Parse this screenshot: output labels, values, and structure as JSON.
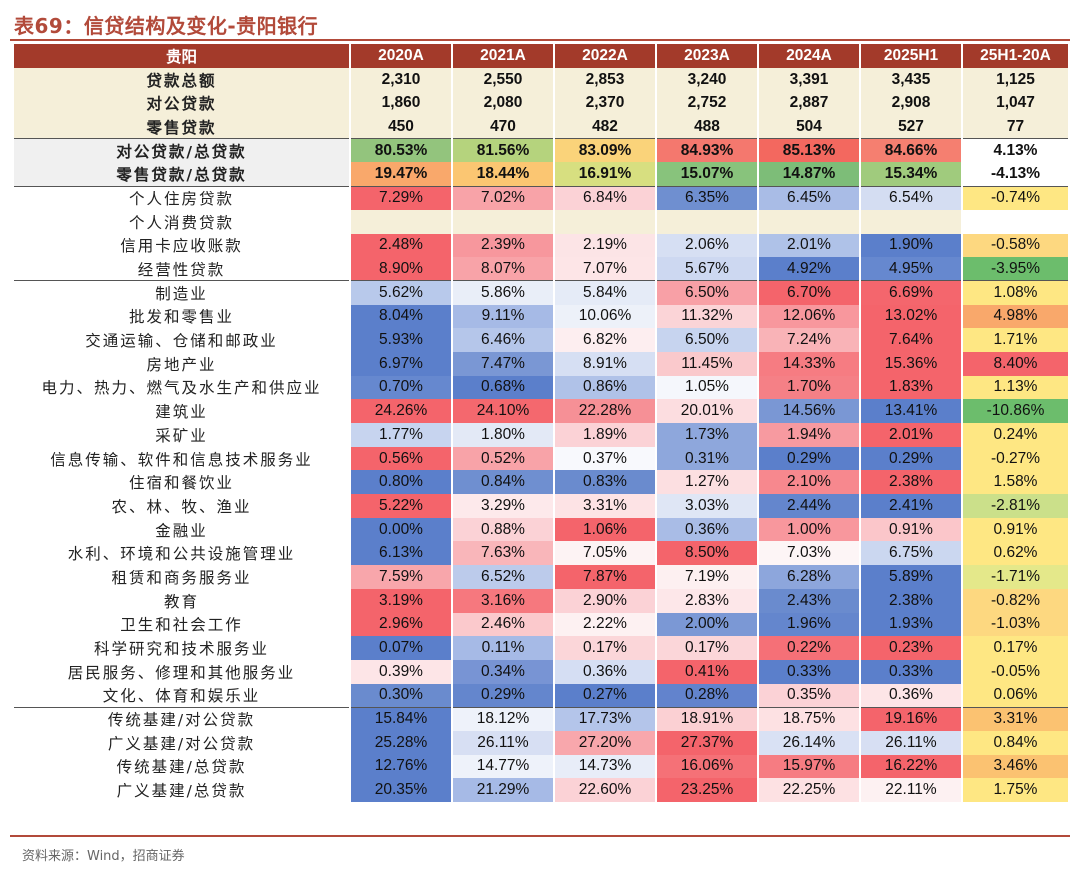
{
  "title": "表69：信贷结构及变化-贵阳银行",
  "header": [
    "贵阳",
    "2020A",
    "2021A",
    "2022A",
    "2023A",
    "2024A",
    "2025H1",
    "25H1-20A"
  ],
  "rows": [
    {
      "label": "贷款总额",
      "values": [
        "2,310",
        "2,550",
        "2,853",
        "3,240",
        "3,391",
        "3,435",
        "1,125"
      ],
      "colors": [
        "",
        "",
        "",
        "",
        "",
        "",
        ""
      ],
      "style": "beige bold"
    },
    {
      "label": "对公贷款",
      "values": [
        "1,860",
        "2,080",
        "2,370",
        "2,752",
        "2,887",
        "2,908",
        "1,047"
      ],
      "colors": [
        "",
        "",
        "",
        "",
        "",
        "",
        ""
      ],
      "style": "beige bold"
    },
    {
      "label": "零售贷款",
      "values": [
        "450",
        "470",
        "482",
        "488",
        "504",
        "527",
        "77"
      ],
      "colors": [
        "",
        "",
        "",
        "",
        "",
        "",
        ""
      ],
      "style": "beige bold"
    },
    {
      "label": "对公贷款/总贷款",
      "values": [
        "80.53%",
        "81.56%",
        "83.09%",
        "84.93%",
        "85.13%",
        "84.66%",
        "4.13%"
      ],
      "colors": [
        "#93c47d",
        "#b5d37d",
        "#fad37a",
        "#f4786e",
        "#f3685f",
        "#f57f70",
        "#ffffff"
      ],
      "style": "gray bold sep"
    },
    {
      "label": "零售贷款/总贷款",
      "values": [
        "19.47%",
        "18.44%",
        "16.91%",
        "15.07%",
        "14.87%",
        "15.34%",
        "-4.13%"
      ],
      "colors": [
        "#f9a86b",
        "#fbc672",
        "#d7df80",
        "#88c37c",
        "#7dbd78",
        "#a0cb7d",
        "#ffffff"
      ],
      "style": "gray bold"
    },
    {
      "label": "个人住房贷款",
      "values": [
        "7.29%",
        "7.02%",
        "6.84%",
        "6.35%",
        "6.45%",
        "6.54%",
        "-0.74%"
      ],
      "colors": [
        "#f4646b",
        "#f8a3a8",
        "#fbd2d6",
        "#6f8fd0",
        "#a9bce6",
        "#d4ddf2",
        "#fee783"
      ],
      "style": "sep"
    },
    {
      "label": "个人消费贷款",
      "values": [
        "",
        "",
        "",
        "",
        "",
        "",
        ""
      ],
      "colors": [
        "#f5efd9",
        "#f5efd9",
        "#f5efd9",
        "#f5efd9",
        "#f5efd9",
        "#f5efd9",
        "#ffffff"
      ],
      "style": ""
    },
    {
      "label": "信用卡应收账款",
      "values": [
        "2.48%",
        "2.39%",
        "2.19%",
        "2.06%",
        "2.01%",
        "1.90%",
        "-0.58%"
      ],
      "colors": [
        "#f4646b",
        "#f7979d",
        "#fce4e6",
        "#d6dff3",
        "#afc2e8",
        "#5b7fcb",
        "#fdd880"
      ],
      "style": ""
    },
    {
      "label": "经营性贷款",
      "values": [
        "8.90%",
        "8.07%",
        "7.07%",
        "5.67%",
        "4.92%",
        "4.95%",
        "-3.95%"
      ],
      "colors": [
        "#f4646b",
        "#f8a3a8",
        "#fde5e7",
        "#cdd8f1",
        "#5b7fcb",
        "#6688cf",
        "#6cbd6c"
      ],
      "style": ""
    },
    {
      "label": "制造业",
      "values": [
        "5.62%",
        "5.86%",
        "5.84%",
        "6.50%",
        "6.70%",
        "6.69%",
        "1.08%"
      ],
      "colors": [
        "#b8c9eb",
        "#e9eef8",
        "#e5ebf7",
        "#f8a0a6",
        "#f4646b",
        "#f4666d",
        "#fee783"
      ],
      "style": "sep"
    },
    {
      "label": "批发和零售业",
      "values": [
        "8.04%",
        "9.11%",
        "10.06%",
        "11.32%",
        "12.06%",
        "13.02%",
        "4.98%"
      ],
      "colors": [
        "#5b7fcb",
        "#a6bae6",
        "#edf1f9",
        "#fbd4d7",
        "#f8979d",
        "#f4646b",
        "#f9a86b"
      ],
      "style": ""
    },
    {
      "label": "交通运输、仓储和邮政业",
      "values": [
        "5.93%",
        "6.46%",
        "6.82%",
        "6.50%",
        "7.24%",
        "7.64%",
        "1.71%"
      ],
      "colors": [
        "#5b7fcb",
        "#b5c6ea",
        "#fdeef0",
        "#c7d4ef",
        "#f9b3b7",
        "#f4646b",
        "#fee783"
      ],
      "style": ""
    },
    {
      "label": "房地产业",
      "values": [
        "6.97%",
        "7.47%",
        "8.91%",
        "11.45%",
        "14.33%",
        "15.36%",
        "8.40%"
      ],
      "colors": [
        "#5b7fcb",
        "#7a97d4",
        "#d6dff3",
        "#fac9cc",
        "#f67c82",
        "#f4646b",
        "#f4646b"
      ],
      "style": ""
    },
    {
      "label": "电力、热力、燃气及水生产和供应业",
      "values": [
        "0.70%",
        "0.68%",
        "0.86%",
        "1.05%",
        "1.70%",
        "1.83%",
        "1.13%"
      ],
      "colors": [
        "#6688cf",
        "#5b7fcb",
        "#b0c2e8",
        "#f5f7fc",
        "#f58086",
        "#f4646b",
        "#fee783"
      ],
      "style": ""
    },
    {
      "label": "建筑业",
      "values": [
        "24.26%",
        "24.10%",
        "22.28%",
        "20.01%",
        "14.56%",
        "13.41%",
        "-10.86%"
      ],
      "colors": [
        "#f4646b",
        "#f4686e",
        "#f69096",
        "#fcdde0",
        "#7a97d4",
        "#5b7fcb",
        "#6cbd6c"
      ],
      "style": ""
    },
    {
      "label": "采矿业",
      "values": [
        "1.77%",
        "1.80%",
        "1.89%",
        "1.73%",
        "1.94%",
        "2.01%",
        "0.24%"
      ],
      "colors": [
        "#c7d4ef",
        "#e3e9f6",
        "#fbd2d6",
        "#8ea7dc",
        "#f79aa0",
        "#f4646b",
        "#fee783"
      ],
      "style": ""
    },
    {
      "label": "信息传输、软件和信息技术服务业",
      "values": [
        "0.56%",
        "0.52%",
        "0.37%",
        "0.31%",
        "0.29%",
        "0.29%",
        "-0.27%"
      ],
      "colors": [
        "#f4646b",
        "#f8a3a8",
        "#f8f9fd",
        "#8ea7dc",
        "#5b7fcb",
        "#5b7fcb",
        "#fee783"
      ],
      "style": ""
    },
    {
      "label": "住宿和餐饮业",
      "values": [
        "0.80%",
        "0.84%",
        "0.83%",
        "1.27%",
        "2.10%",
        "2.38%",
        "1.58%"
      ],
      "colors": [
        "#5b7fcb",
        "#6f8fd0",
        "#6a8bce",
        "#fcdfe1",
        "#f7888e",
        "#f4646b",
        "#fee783"
      ],
      "style": ""
    },
    {
      "label": "农、林、牧、渔业",
      "values": [
        "5.22%",
        "3.29%",
        "3.31%",
        "3.03%",
        "2.44%",
        "2.41%",
        "-2.81%"
      ],
      "colors": [
        "#f4646b",
        "#fde9eb",
        "#fde3e5",
        "#dfe6f5",
        "#6486cd",
        "#5b7fcb",
        "#cbe08a"
      ],
      "style": ""
    },
    {
      "label": "金融业",
      "values": [
        "0.00%",
        "0.88%",
        "1.06%",
        "0.36%",
        "1.00%",
        "0.91%",
        "0.91%"
      ],
      "colors": [
        "#5b7fcb",
        "#fbd2d6",
        "#f4646b",
        "#a9bce6",
        "#f8979d",
        "#fbc6ca",
        "#fee783"
      ],
      "style": ""
    },
    {
      "label": "水利、环境和公共设施管理业",
      "values": [
        "6.13%",
        "7.63%",
        "7.05%",
        "8.50%",
        "7.03%",
        "6.75%",
        "0.62%"
      ],
      "colors": [
        "#5b7fcb",
        "#f9b6ba",
        "#fdf3f4",
        "#f4646b",
        "#fdf5f6",
        "#cbd7f0",
        "#fee783"
      ],
      "style": ""
    },
    {
      "label": "租赁和商务服务业",
      "values": [
        "7.59%",
        "6.52%",
        "7.87%",
        "7.19%",
        "6.28%",
        "5.89%",
        "-1.71%"
      ],
      "colors": [
        "#f8a6ab",
        "#bccbeb",
        "#f4646b",
        "#fdf0f1",
        "#8da6dc",
        "#5b7fcb",
        "#e4e88a"
      ],
      "style": ""
    },
    {
      "label": "教育",
      "values": [
        "3.19%",
        "3.16%",
        "2.90%",
        "2.83%",
        "2.43%",
        "2.38%",
        "-0.82%"
      ],
      "colors": [
        "#f4646b",
        "#f6787e",
        "#fbd2d6",
        "#fde7e9",
        "#6a8bce",
        "#5b7fcb",
        "#fdd880"
      ],
      "style": ""
    },
    {
      "label": "卫生和社会工作",
      "values": [
        "2.96%",
        "2.46%",
        "2.22%",
        "2.00%",
        "1.96%",
        "1.93%",
        "-1.03%"
      ],
      "colors": [
        "#f4646b",
        "#fbc9cc",
        "#fdf1f2",
        "#7b98d5",
        "#6486cd",
        "#5b7fcb",
        "#fdd880"
      ],
      "style": ""
    },
    {
      "label": "科学研究和技术服务业",
      "values": [
        "0.07%",
        "0.11%",
        "0.17%",
        "0.17%",
        "0.22%",
        "0.23%",
        "0.17%"
      ],
      "colors": [
        "#5b7fcb",
        "#a6bae6",
        "#fbd6d9",
        "#fbd6d9",
        "#f57077",
        "#f4646b",
        "#fee783"
      ],
      "style": ""
    },
    {
      "label": "居民服务、修理和其他服务业",
      "values": [
        "0.39%",
        "0.34%",
        "0.36%",
        "0.41%",
        "0.33%",
        "0.33%",
        "-0.05%"
      ],
      "colors": [
        "#fde5e7",
        "#7894d4",
        "#d5def3",
        "#f4646b",
        "#5b7fcb",
        "#5b7fcb",
        "#fee783"
      ],
      "style": ""
    },
    {
      "label": "文化、体育和娱乐业",
      "values": [
        "0.30%",
        "0.29%",
        "0.27%",
        "0.28%",
        "0.35%",
        "0.36%",
        "0.06%"
      ],
      "colors": [
        "#6a8bce",
        "#6486cd",
        "#5b7fcb",
        "#6283cd",
        "#fbd2d6",
        "#fde5e7",
        "#fee783"
      ],
      "style": ""
    },
    {
      "label": "传统基建/对公贷款",
      "values": [
        "15.84%",
        "18.12%",
        "17.73%",
        "18.91%",
        "18.75%",
        "19.16%",
        "3.31%"
      ],
      "colors": [
        "#5b7fcb",
        "#eef2fa",
        "#b4c5ea",
        "#fbd0d3",
        "#fde1e3",
        "#f4646b",
        "#fbc271"
      ],
      "style": "sep"
    },
    {
      "label": "广义基建/对公贷款",
      "values": [
        "25.28%",
        "26.11%",
        "27.20%",
        "27.37%",
        "26.14%",
        "26.11%",
        "0.84%"
      ],
      "colors": [
        "#5b7fcb",
        "#d7dff3",
        "#f8a7ac",
        "#f4646b",
        "#d9e1f4",
        "#d7dff3",
        "#fee783"
      ],
      "style": ""
    },
    {
      "label": "传统基建/总贷款",
      "values": [
        "12.76%",
        "14.77%",
        "14.73%",
        "16.06%",
        "15.97%",
        "16.22%",
        "3.46%"
      ],
      "colors": [
        "#5b7fcb",
        "#eef2fa",
        "#e8edf8",
        "#f57177",
        "#f67c82",
        "#f4646b",
        "#fbc271"
      ],
      "style": ""
    },
    {
      "label": "广义基建/总贷款",
      "values": [
        "20.35%",
        "21.29%",
        "22.60%",
        "23.25%",
        "22.25%",
        "22.11%",
        "1.75%"
      ],
      "colors": [
        "#5b7fcb",
        "#a6bae6",
        "#fbd2d6",
        "#f4646b",
        "#fde1e3",
        "#fdf1f2",
        "#fee783"
      ],
      "style": ""
    }
  ],
  "source": "资料来源：Wind，招商证券"
}
